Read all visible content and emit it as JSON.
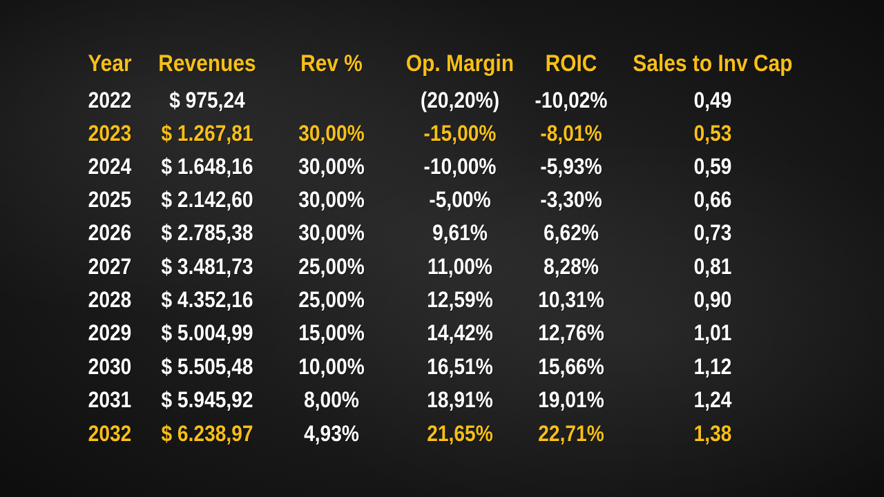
{
  "table": {
    "headers": {
      "year": "Year",
      "revenues": "Revenues",
      "rev_pct": "Rev %",
      "op_margin": "Op. Margin",
      "roic": "ROIC",
      "sales_to_inv_cap": "Sales to Inv Cap"
    },
    "highlight_color": "#f7bf18",
    "text_color": "#ffffff",
    "rows": [
      {
        "year": "2022",
        "revenues": "$ 975,24",
        "rev_pct": "",
        "op_margin": "(20,20%)",
        "roic": "-10,02%",
        "sales": "0,49",
        "highlight": false
      },
      {
        "year": "2023",
        "revenues": "$ 1.267,81",
        "rev_pct": "30,00%",
        "op_margin": "-15,00%",
        "roic": "-8,01%",
        "sales": "0,53",
        "highlight": true
      },
      {
        "year": "2024",
        "revenues": "$ 1.648,16",
        "rev_pct": "30,00%",
        "op_margin": "-10,00%",
        "roic": "-5,93%",
        "sales": "0,59",
        "highlight": false
      },
      {
        "year": "2025",
        "revenues": "$ 2.142,60",
        "rev_pct": "30,00%",
        "op_margin": "-5,00%",
        "roic": "-3,30%",
        "sales": "0,66",
        "highlight": false
      },
      {
        "year": "2026",
        "revenues": "$ 2.785,38",
        "rev_pct": "30,00%",
        "op_margin": "9,61%",
        "roic": "6,62%",
        "sales": "0,73",
        "highlight": false
      },
      {
        "year": "2027",
        "revenues": "$ 3.481,73",
        "rev_pct": "25,00%",
        "op_margin": "11,00%",
        "roic": "8,28%",
        "sales": "0,81",
        "highlight": false
      },
      {
        "year": "2028",
        "revenues": "$ 4.352,16",
        "rev_pct": "25,00%",
        "op_margin": "12,59%",
        "roic": "10,31%",
        "sales": "0,90",
        "highlight": false
      },
      {
        "year": "2029",
        "revenues": "$ 5.004,99",
        "rev_pct": "15,00%",
        "op_margin": "14,42%",
        "roic": "12,76%",
        "sales": "1,01",
        "highlight": false
      },
      {
        "year": "2030",
        "revenues": "$ 5.505,48",
        "rev_pct": "10,00%",
        "op_margin": "16,51%",
        "roic": "15,66%",
        "sales": "1,12",
        "highlight": false
      },
      {
        "year": "2031",
        "revenues": "$ 5.945,92",
        "rev_pct": "8,00%",
        "op_margin": "18,91%",
        "roic": "19,01%",
        "sales": "1,24",
        "highlight": false
      },
      {
        "year": "2032",
        "revenues": "$ 6.238,97",
        "rev_pct": "4,93%",
        "op_margin": "21,65%",
        "roic": "22,71%",
        "sales": "1,38",
        "highlight": true
      }
    ]
  }
}
